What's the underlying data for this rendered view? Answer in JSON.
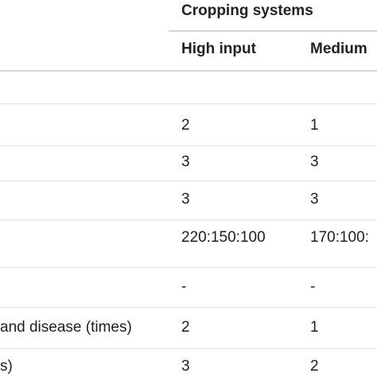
{
  "table": {
    "group_header": "Cropping systems",
    "columns": [
      "High input",
      "Medium"
    ],
    "rows": [
      {
        "label": "",
        "values": [
          "2",
          "1"
        ]
      },
      {
        "label": "",
        "values": [
          "3",
          "3"
        ]
      },
      {
        "label": "",
        "values": [
          "3",
          "3"
        ]
      },
      {
        "label": "",
        "values": [
          "220:150:100",
          "170:100:"
        ]
      },
      {
        "label": "",
        "values": [
          "-",
          "-"
        ]
      },
      {
        "label": "and disease (times)",
        "values": [
          "2",
          "1"
        ]
      },
      {
        "label": "s)",
        "values": [
          "3",
          "2"
        ]
      }
    ]
  }
}
